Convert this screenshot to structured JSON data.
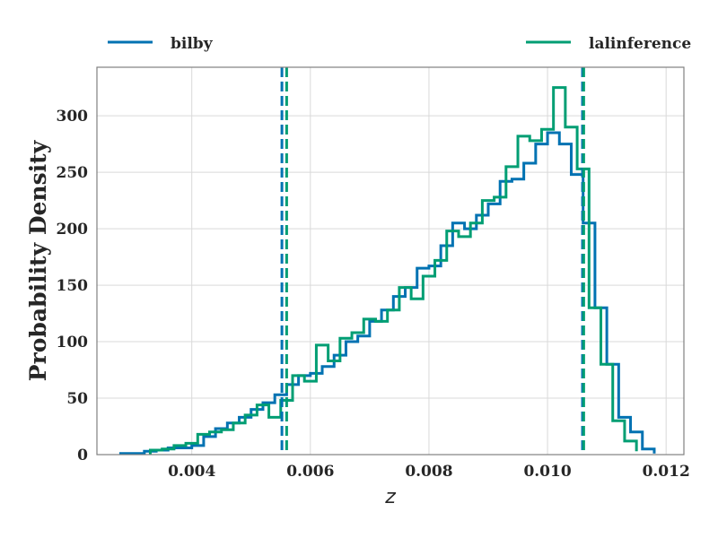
{
  "chart_data": {
    "type": "histogram",
    "xlabel": "z",
    "ylabel": "Probability Density",
    "xlim": [
      0.0024,
      0.0123
    ],
    "ylim": [
      0,
      343
    ],
    "grid": true,
    "legend_placement": "top, above plot",
    "xticks": [
      {
        "value": 0.004,
        "label": "0.004"
      },
      {
        "value": 0.006,
        "label": "0.006"
      },
      {
        "value": 0.008,
        "label": "0.008"
      },
      {
        "value": 0.01,
        "label": "0.010"
      },
      {
        "value": 0.012,
        "label": "0.012"
      }
    ],
    "yticks": [
      {
        "value": 0,
        "label": "0"
      },
      {
        "value": 50,
        "label": "50"
      },
      {
        "value": 100,
        "label": "100"
      },
      {
        "value": 150,
        "label": "150"
      },
      {
        "value": 200,
        "label": "200"
      },
      {
        "value": 250,
        "label": "250"
      },
      {
        "value": 300,
        "label": "300"
      }
    ],
    "series": [
      {
        "name": "bilby",
        "color": "#0072b2",
        "bin_edges": [
          0.0028,
          0.003,
          0.0032,
          0.0034,
          0.0036,
          0.0038,
          0.004,
          0.0042,
          0.0044,
          0.0046,
          0.0048,
          0.005,
          0.0052,
          0.0054,
          0.0056,
          0.0058,
          0.006,
          0.0062,
          0.0064,
          0.0066,
          0.0068,
          0.007,
          0.0072,
          0.0074,
          0.0076,
          0.0078,
          0.008,
          0.0082,
          0.0084,
          0.0086,
          0.0088,
          0.009,
          0.0092,
          0.0094,
          0.0096,
          0.0098,
          0.01,
          0.0102,
          0.0104,
          0.0106,
          0.0108,
          0.011,
          0.0112,
          0.0114,
          0.0116,
          0.0118
        ],
        "densities": [
          1,
          1,
          3,
          4,
          6,
          6,
          8,
          16,
          23,
          28,
          33,
          40,
          46,
          53,
          62,
          70,
          72,
          78,
          88,
          100,
          105,
          118,
          128,
          140,
          148,
          165,
          167,
          185,
          205,
          200,
          212,
          222,
          242,
          244,
          258,
          275,
          285,
          275,
          248,
          205,
          130,
          80,
          33,
          20,
          5,
          1
        ]
      },
      {
        "name": "lalinference",
        "color": "#009e73",
        "bin_edges": [
          0.0033,
          0.0035,
          0.0037,
          0.0039,
          0.0041,
          0.0043,
          0.0045,
          0.0047,
          0.0049,
          0.0051,
          0.0053,
          0.0055,
          0.0057,
          0.0059,
          0.0061,
          0.0063,
          0.0065,
          0.0067,
          0.0069,
          0.0071,
          0.0073,
          0.0075,
          0.0077,
          0.0079,
          0.0081,
          0.0083,
          0.0085,
          0.0087,
          0.0089,
          0.0091,
          0.0093,
          0.0095,
          0.0097,
          0.0099,
          0.0101,
          0.0103,
          0.0105,
          0.0107,
          0.0109,
          0.0111,
          0.0113,
          0.0115
        ],
        "densities": [
          4,
          5,
          8,
          10,
          18,
          20,
          22,
          28,
          35,
          44,
          33,
          48,
          70,
          65,
          97,
          83,
          103,
          108,
          120,
          118,
          128,
          148,
          138,
          158,
          172,
          198,
          193,
          205,
          225,
          228,
          255,
          282,
          278,
          288,
          325,
          290,
          253,
          130,
          80,
          30,
          12,
          3
        ]
      }
    ],
    "vlines": [
      {
        "series": "bilby",
        "x": 0.00552,
        "color": "#0072b2",
        "style": "dashed"
      },
      {
        "series": "bilby",
        "x": 0.01059,
        "color": "#0072b2",
        "style": "dashed"
      },
      {
        "series": "lalinference",
        "x": 0.0056,
        "color": "#009e73",
        "style": "dashed"
      },
      {
        "series": "lalinference",
        "x": 0.01061,
        "color": "#009e73",
        "style": "dashed"
      }
    ]
  }
}
